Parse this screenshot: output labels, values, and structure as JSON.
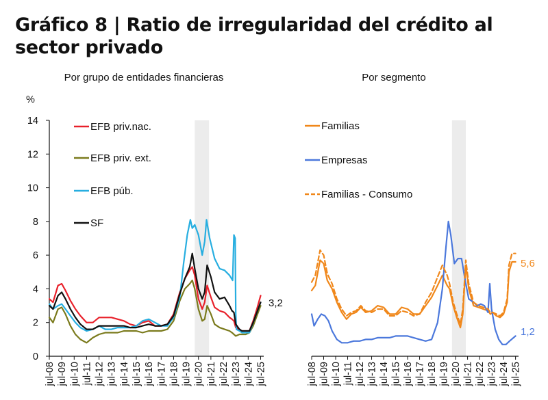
{
  "title": "Gráfico 8 | Ratio de irregularidad del crédito al sector privado",
  "unit": "%",
  "charts": {
    "left": {
      "subtitle": "Por grupo de entidades financieras",
      "end_label": "3,2"
    },
    "right": {
      "subtitle": "Por segmento",
      "end_label_familias": "5,6",
      "end_label_empresas": "1,2"
    }
  },
  "chart_data": [
    {
      "type": "line",
      "subtitle": "Por grupo de entidades financieras",
      "ylabel": "%",
      "ylim": [
        0,
        14
      ],
      "yticks": [
        "0",
        "2",
        "4",
        "6",
        "8",
        "10",
        "12",
        "14"
      ],
      "xlim": [
        2008.5,
        2025.75
      ],
      "xticks": [
        "jul-08",
        "jul-09",
        "jul-10",
        "jul-11",
        "jul-12",
        "jul-13",
        "jul-14",
        "jul-15",
        "jul-16",
        "jul-17",
        "jul-18",
        "jul-19",
        "jul-20",
        "jul-21",
        "jul-22",
        "jul-23",
        "jul-24",
        "jul-25"
      ],
      "shaded_period": [
        2020.2,
        2021.35
      ],
      "legend_position": "top-left",
      "series": [
        {
          "name": "EFB priv.nac.",
          "color": "#e8202a",
          "x": [
            2008.5,
            2008.8,
            2009.2,
            2009.5,
            2009.8,
            2010.2,
            2010.6,
            2011.0,
            2011.5,
            2012.0,
            2012.5,
            2013.0,
            2013.5,
            2014.0,
            2014.5,
            2015.0,
            2015.5,
            2016.0,
            2016.5,
            2017.0,
            2017.5,
            2018.0,
            2018.5,
            2019.0,
            2019.4,
            2019.8,
            2020.0,
            2020.2,
            2020.5,
            2020.8,
            2021.0,
            2021.2,
            2021.5,
            2021.8,
            2022.2,
            2022.6,
            2023.0,
            2023.2,
            2023.35,
            2023.5,
            2023.8,
            2024.0,
            2024.3,
            2024.6,
            2024.9,
            2025.2,
            2025.5
          ],
          "y": [
            3.4,
            3.2,
            4.2,
            4.3,
            3.9,
            3.3,
            2.8,
            2.4,
            2.0,
            2.0,
            2.3,
            2.3,
            2.3,
            2.2,
            2.1,
            1.9,
            1.8,
            2.0,
            2.1,
            1.8,
            1.8,
            1.9,
            2.5,
            3.8,
            4.6,
            5.1,
            5.3,
            4.8,
            3.4,
            2.8,
            3.2,
            4.2,
            3.5,
            2.9,
            2.7,
            2.6,
            2.3,
            2.2,
            2.1,
            1.7,
            1.6,
            1.5,
            1.5,
            1.5,
            2.1,
            2.8,
            3.6
          ]
        },
        {
          "name": "EFB priv. ext.",
          "color": "#7a7a1c",
          "x": [
            2008.5,
            2008.8,
            2009.2,
            2009.5,
            2009.8,
            2010.2,
            2010.6,
            2011.0,
            2011.5,
            2012.0,
            2012.5,
            2013.0,
            2013.5,
            2014.0,
            2014.5,
            2015.0,
            2015.5,
            2016.0,
            2016.5,
            2017.0,
            2017.5,
            2018.0,
            2018.5,
            2019.0,
            2019.4,
            2019.8,
            2020.0,
            2020.2,
            2020.5,
            2020.8,
            2021.0,
            2021.2,
            2021.5,
            2021.8,
            2022.2,
            2022.6,
            2023.0,
            2023.2,
            2023.35,
            2023.5,
            2023.8,
            2024.0,
            2024.3,
            2024.6,
            2024.9,
            2025.2,
            2025.5
          ],
          "y": [
            2.3,
            2.0,
            2.8,
            2.9,
            2.5,
            1.8,
            1.3,
            1.0,
            0.8,
            1.1,
            1.3,
            1.4,
            1.4,
            1.4,
            1.5,
            1.5,
            1.5,
            1.4,
            1.5,
            1.5,
            1.5,
            1.6,
            2.1,
            3.3,
            4.0,
            4.3,
            4.5,
            4.0,
            2.8,
            2.1,
            2.2,
            3.0,
            2.5,
            1.9,
            1.7,
            1.6,
            1.5,
            1.4,
            1.3,
            1.2,
            1.3,
            1.3,
            1.3,
            1.4,
            1.8,
            2.4,
            3.0
          ]
        },
        {
          "name": "EFB púb.",
          "color": "#27aee0",
          "x": [
            2008.5,
            2008.8,
            2009.2,
            2009.5,
            2009.8,
            2010.2,
            2010.6,
            2011.0,
            2011.5,
            2012.0,
            2012.5,
            2013.0,
            2013.5,
            2014.0,
            2014.5,
            2015.0,
            2015.5,
            2016.0,
            2016.5,
            2017.0,
            2017.5,
            2018.0,
            2018.5,
            2019.0,
            2019.3,
            2019.6,
            2019.85,
            2020.0,
            2020.2,
            2020.5,
            2020.8,
            2021.0,
            2021.15,
            2021.4,
            2021.8,
            2022.2,
            2022.6,
            2023.0,
            2023.25,
            2023.35,
            2023.45,
            2023.5,
            2023.55,
            2023.8,
            2024.0,
            2024.3,
            2024.6,
            2024.9,
            2025.2,
            2025.5
          ],
          "y": [
            3.1,
            2.8,
            3.0,
            3.1,
            2.8,
            2.4,
            2.0,
            1.7,
            1.5,
            1.6,
            1.8,
            1.6,
            1.6,
            1.7,
            1.7,
            1.7,
            1.8,
            2.1,
            2.2,
            2.0,
            1.8,
            1.8,
            2.3,
            3.5,
            5.5,
            7.2,
            8.1,
            7.6,
            7.8,
            7.2,
            6.0,
            6.8,
            8.1,
            7.0,
            5.8,
            5.2,
            5.1,
            4.8,
            4.5,
            7.2,
            7.0,
            2.5,
            1.6,
            1.5,
            1.4,
            1.4,
            1.4,
            2.0,
            2.6,
            3.2
          ]
        },
        {
          "name": "SF",
          "color": "#111111",
          "x": [
            2008.5,
            2008.8,
            2009.2,
            2009.5,
            2009.8,
            2010.2,
            2010.6,
            2011.0,
            2011.5,
            2012.0,
            2012.5,
            2013.0,
            2013.5,
            2014.0,
            2014.5,
            2015.0,
            2015.5,
            2016.0,
            2016.5,
            2017.0,
            2017.5,
            2018.0,
            2018.5,
            2019.0,
            2019.4,
            2019.8,
            2020.0,
            2020.2,
            2020.5,
            2020.8,
            2021.0,
            2021.2,
            2021.5,
            2021.8,
            2022.2,
            2022.6,
            2023.0,
            2023.2,
            2023.35,
            2023.5,
            2023.8,
            2024.0,
            2024.3,
            2024.6,
            2024.9,
            2025.2,
            2025.5
          ],
          "y": [
            3.0,
            2.8,
            3.6,
            3.8,
            3.4,
            2.8,
            2.3,
            1.9,
            1.6,
            1.6,
            1.8,
            1.8,
            1.8,
            1.8,
            1.8,
            1.7,
            1.7,
            1.8,
            1.9,
            1.8,
            1.8,
            1.9,
            2.4,
            3.7,
            4.6,
            5.3,
            6.1,
            5.2,
            4.0,
            3.4,
            3.8,
            5.4,
            4.7,
            3.8,
            3.4,
            3.5,
            3.0,
            2.7,
            2.6,
            1.9,
            1.6,
            1.5,
            1.5,
            1.5,
            2.0,
            2.6,
            3.2
          ]
        }
      ]
    },
    {
      "type": "line",
      "subtitle": "Por segmento",
      "ylabel": "%",
      "ylim": [
        0,
        14
      ],
      "xlim": [
        2008.5,
        2025.75
      ],
      "xticks": [
        "jul-08",
        "jul-09",
        "jul-10",
        "jul-11",
        "jul-12",
        "jul-13",
        "jul-14",
        "jul-15",
        "jul-16",
        "jul-17",
        "jul-18",
        "jul-19",
        "jul-20",
        "jul-21",
        "jul-22",
        "jul-23",
        "jul-24",
        "jul-25"
      ],
      "shaded_period": [
        2020.2,
        2021.35
      ],
      "legend_position": "top-left",
      "series": [
        {
          "name": "Familias",
          "color": "#f0871a",
          "dash": false,
          "x": [
            2008.5,
            2008.8,
            2009.2,
            2009.5,
            2009.8,
            2010.2,
            2010.6,
            2011.0,
            2011.4,
            2011.8,
            2012.2,
            2012.6,
            2013.0,
            2013.5,
            2014.0,
            2014.5,
            2015.0,
            2015.5,
            2016.0,
            2016.5,
            2017.0,
            2017.5,
            2018.0,
            2018.5,
            2019.0,
            2019.4,
            2019.8,
            2020.0,
            2020.3,
            2020.6,
            2020.9,
            2021.1,
            2021.35,
            2021.6,
            2022.0,
            2022.4,
            2022.8,
            2023.2,
            2023.4,
            2023.6,
            2023.9,
            2024.2,
            2024.5,
            2024.8,
            2024.95,
            2025.2,
            2025.5
          ],
          "y": [
            3.9,
            4.2,
            5.7,
            5.5,
            4.5,
            4.0,
            3.2,
            2.6,
            2.2,
            2.5,
            2.6,
            2.9,
            2.6,
            2.7,
            3.0,
            2.9,
            2.5,
            2.5,
            2.9,
            2.8,
            2.5,
            2.5,
            3.0,
            3.5,
            4.2,
            4.8,
            4.2,
            4.0,
            3.0,
            2.3,
            1.7,
            2.5,
            5.4,
            4.0,
            3.0,
            2.9,
            2.8,
            2.7,
            2.5,
            2.6,
            2.4,
            2.3,
            2.5,
            3.2,
            5.0,
            5.6,
            5.6
          ]
        },
        {
          "name": "Empresas",
          "color": "#4b78dc",
          "dash": false,
          "x": [
            2008.5,
            2008.7,
            2009.0,
            2009.3,
            2009.6,
            2009.9,
            2010.2,
            2010.6,
            2011.0,
            2011.5,
            2012.0,
            2012.5,
            2013.0,
            2013.5,
            2014.0,
            2014.5,
            2015.0,
            2015.5,
            2016.0,
            2016.5,
            2017.0,
            2017.5,
            2018.0,
            2018.5,
            2019.0,
            2019.4,
            2019.7,
            2019.9,
            2020.1,
            2020.4,
            2020.7,
            2021.0,
            2021.3,
            2021.6,
            2022.0,
            2022.3,
            2022.6,
            2022.9,
            2023.2,
            2023.35,
            2023.5,
            2023.8,
            2024.1,
            2024.4,
            2024.7,
            2025.0,
            2025.5
          ],
          "y": [
            2.5,
            1.8,
            2.2,
            2.5,
            2.4,
            2.1,
            1.5,
            1.0,
            0.8,
            0.8,
            0.9,
            0.9,
            1.0,
            1.0,
            1.1,
            1.1,
            1.1,
            1.2,
            1.2,
            1.2,
            1.1,
            1.0,
            0.9,
            1.0,
            2.0,
            4.0,
            6.5,
            8.0,
            7.2,
            5.5,
            5.8,
            5.8,
            4.5,
            3.4,
            3.2,
            3.0,
            3.1,
            3.0,
            2.6,
            4.3,
            2.8,
            1.6,
            1.0,
            0.7,
            0.7,
            0.9,
            1.2
          ]
        },
        {
          "name": "Familias - Consumo",
          "color": "#f0871a",
          "dash": true,
          "x": [
            2008.5,
            2008.8,
            2009.2,
            2009.5,
            2009.8,
            2010.2,
            2010.6,
            2011.0,
            2011.4,
            2011.8,
            2012.2,
            2012.6,
            2013.0,
            2013.5,
            2014.0,
            2014.5,
            2015.0,
            2015.5,
            2016.0,
            2016.5,
            2017.0,
            2017.5,
            2018.0,
            2018.5,
            2019.0,
            2019.4,
            2019.8,
            2020.0,
            2020.3,
            2020.6,
            2020.9,
            2021.1,
            2021.35,
            2021.6,
            2022.0,
            2022.4,
            2022.8,
            2023.2,
            2023.4,
            2023.6,
            2023.9,
            2024.2,
            2024.5,
            2024.8,
            2024.95,
            2025.2,
            2025.5
          ],
          "y": [
            4.4,
            4.8,
            6.3,
            6.0,
            4.9,
            4.3,
            3.4,
            2.8,
            2.4,
            2.6,
            2.7,
            3.0,
            2.7,
            2.6,
            2.8,
            2.8,
            2.4,
            2.4,
            2.7,
            2.6,
            2.4,
            2.5,
            3.2,
            3.8,
            4.7,
            5.4,
            4.8,
            4.3,
            3.2,
            2.5,
            1.9,
            2.8,
            5.7,
            4.3,
            3.2,
            3.0,
            2.9,
            2.8,
            2.6,
            2.6,
            2.5,
            2.4,
            2.6,
            3.4,
            5.4,
            6.1,
            6.1
          ]
        }
      ]
    }
  ]
}
